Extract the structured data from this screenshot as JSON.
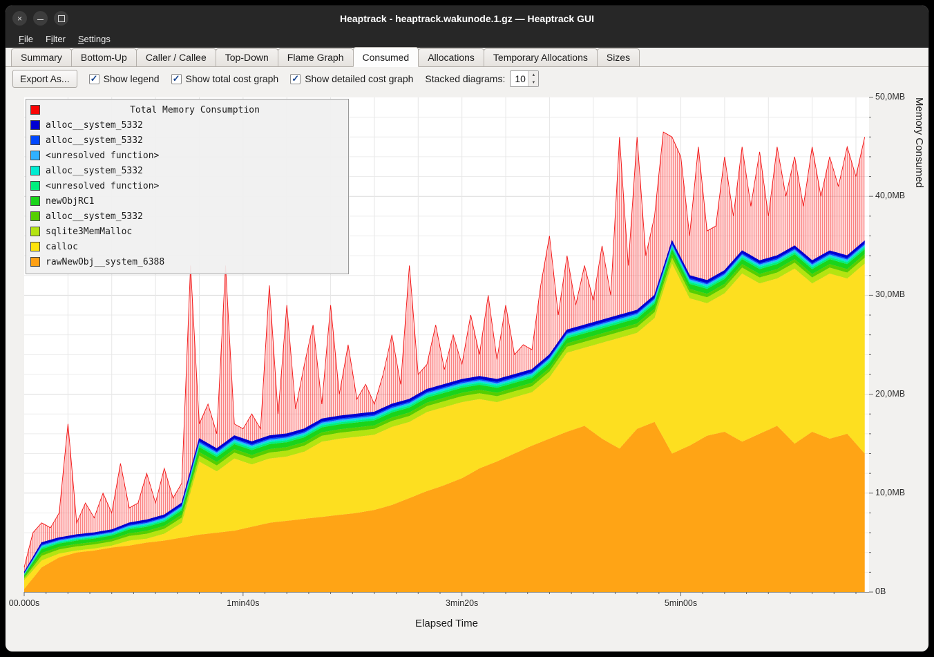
{
  "window": {
    "title": "Heaptrack - heaptrack.wakunode.1.gz — Heaptrack GUI",
    "controls": [
      {
        "name": "close",
        "glyph": "×"
      },
      {
        "name": "minimize",
        "glyph": "minus"
      },
      {
        "name": "maximize",
        "glyph": "square"
      }
    ]
  },
  "menubar": {
    "items": [
      {
        "label": "File",
        "underline": 0
      },
      {
        "label": "Filter",
        "underline": 1
      },
      {
        "label": "Settings",
        "underline": 0
      }
    ]
  },
  "tabs": {
    "items": [
      {
        "label": "Summary",
        "active": false
      },
      {
        "label": "Bottom-Up",
        "active": false
      },
      {
        "label": "Caller / Callee",
        "active": false
      },
      {
        "label": "Top-Down",
        "active": false
      },
      {
        "label": "Flame Graph",
        "active": false
      },
      {
        "label": "Consumed",
        "active": true
      },
      {
        "label": "Allocations",
        "active": false
      },
      {
        "label": "Temporary Allocations",
        "active": false
      },
      {
        "label": "Sizes",
        "active": false
      }
    ]
  },
  "toolbar": {
    "export_button": "Export As...",
    "checkboxes": [
      {
        "label": "Show legend",
        "checked": true
      },
      {
        "label": "Show total cost graph",
        "checked": true
      },
      {
        "label": "Show detailed cost graph",
        "checked": true
      }
    ],
    "stacked_label": "Stacked diagrams:",
    "stacked_value": "10"
  },
  "legend": {
    "title": "Total Memory Consumption",
    "title_color": "#fa0505",
    "entries": [
      {
        "label": "alloc__system_5332",
        "color": "#0000d2"
      },
      {
        "label": "alloc__system_5332",
        "color": "#0048ff"
      },
      {
        "label": "<unresolved function>",
        "color": "#2fb1ff"
      },
      {
        "label": "alloc__system_5332",
        "color": "#00ecd2"
      },
      {
        "label": "<unresolved function>",
        "color": "#00f07e"
      },
      {
        "label": "newObjRC1",
        "color": "#1ad41a"
      },
      {
        "label": "alloc__system_5332",
        "color": "#55cf00"
      },
      {
        "label": "sqlite3MemMalloc",
        "color": "#b4e411"
      },
      {
        "label": "calloc",
        "color": "#fde30b"
      },
      {
        "label": "rawNewObj__system_6388",
        "color": "#ffa013"
      }
    ]
  },
  "axes": {
    "x_label": "Elapsed Time",
    "y_label": "Memory Consumed",
    "x_ticks": [
      {
        "t": 0,
        "label": "00.000s"
      },
      {
        "t": 100,
        "label": "1min40s"
      },
      {
        "t": 200,
        "label": "3min20s"
      },
      {
        "t": 300,
        "label": "5min00s"
      }
    ],
    "y_ticks": [
      {
        "v": 0,
        "label": "0B"
      },
      {
        "v": 10,
        "label": "10,0MB"
      },
      {
        "v": 20,
        "label": "20,0MB"
      },
      {
        "v": 30,
        "label": "30,0MB"
      },
      {
        "v": 40,
        "label": "40,0MB"
      },
      {
        "v": 50,
        "label": "50,0MB"
      }
    ]
  },
  "chart_data": {
    "type": "area",
    "title": "Total Memory Consumption",
    "xlabel": "Elapsed Time",
    "ylabel": "Memory Consumed",
    "x_unit": "s",
    "y_unit": "MB",
    "x_range": [
      0,
      386
    ],
    "y_range": [
      0,
      50
    ],
    "grid": true,
    "legend_position": "top-left",
    "total_series": {
      "name": "Total Memory Consumption",
      "color": "#f21616",
      "step_s": 4,
      "values_mb": [
        2.5,
        6,
        7,
        6.5,
        8,
        17,
        7,
        9,
        7.5,
        10,
        8,
        13,
        8.5,
        9,
        12,
        9,
        12.5,
        9.5,
        11,
        33,
        17,
        19,
        16,
        33,
        17,
        16.5,
        18,
        16.5,
        31,
        18,
        29,
        18.5,
        23,
        27,
        19,
        29,
        20,
        25,
        19.5,
        21,
        19,
        22,
        26,
        21,
        33,
        22,
        23,
        27,
        22.5,
        26,
        23,
        28,
        24,
        30,
        23.5,
        29,
        24,
        25,
        24.5,
        31,
        36,
        28,
        34,
        29,
        33,
        29.5,
        35,
        30,
        46,
        33,
        46,
        34,
        38,
        46.5,
        46,
        44,
        36,
        45,
        36.5,
        37,
        44,
        38,
        45,
        39,
        44.5,
        38,
        45,
        40,
        44,
        39,
        45,
        40,
        44,
        41,
        45,
        42,
        46
      ]
    },
    "stack_top": {
      "name": "top of detailed stack (alloc__system_5332)",
      "color": "#0000d2",
      "step_s": 8,
      "values_mb": [
        2.0,
        5.0,
        5.5,
        5.8,
        6.0,
        6.3,
        7.0,
        7.3,
        7.8,
        9.0,
        15.5,
        14.5,
        15.8,
        15.2,
        15.8,
        16.0,
        16.5,
        17.5,
        17.8,
        18.0,
        18.2,
        19.0,
        19.5,
        20.5,
        21.0,
        21.5,
        21.8,
        21.5,
        22.0,
        22.5,
        24.0,
        26.5,
        27.0,
        27.5,
        28.0,
        28.5,
        30.0,
        35.5,
        32.0,
        31.5,
        32.5,
        34.5,
        33.5,
        34.0,
        35.0,
        33.5,
        34.5,
        34.0,
        35.5
      ]
    },
    "base_layers": [
      {
        "name": "rawNewObj__system_6388",
        "color": "#ffa415",
        "step_s": 8,
        "top_mb": [
          0.3,
          2.5,
          3.5,
          4.0,
          4.2,
          4.5,
          4.7,
          5.0,
          5.2,
          5.5,
          5.8,
          6.0,
          6.2,
          6.6,
          7.0,
          7.2,
          7.4,
          7.6,
          7.8,
          8.0,
          8.3,
          8.8,
          9.5,
          10.2,
          10.8,
          11.5,
          12.5,
          13.2,
          14.0,
          14.8,
          15.5,
          16.2,
          16.8,
          15.5,
          14.5,
          16.5,
          17.2,
          14.0,
          14.8,
          15.8,
          16.2,
          15.2,
          16.0,
          16.8,
          15.0,
          16.2,
          15.5,
          16.0,
          14.0
        ]
      },
      {
        "name": "calloc",
        "color": "#fddf20",
        "step_s": 8,
        "top_mb": [
          1.2,
          3.2,
          3.9,
          4.2,
          4.4,
          4.7,
          5.2,
          5.4,
          5.9,
          7.0,
          13.2,
          12.2,
          13.5,
          12.9,
          13.5,
          13.7,
          14.2,
          15.2,
          15.5,
          15.7,
          15.9,
          16.7,
          17.2,
          18.2,
          18.7,
          19.2,
          19.5,
          19.2,
          19.7,
          20.2,
          21.7,
          24.2,
          24.7,
          25.2,
          25.7,
          26.2,
          27.7,
          33.2,
          29.7,
          29.2,
          30.2,
          32.2,
          31.2,
          31.7,
          32.7,
          31.2,
          32.2,
          31.7,
          33.2
        ]
      }
    ],
    "thin_layers_bottom_to_top": [
      {
        "name": "sqlite3MemMalloc",
        "color": "#b4e411",
        "thickness_mb": 0.6
      },
      {
        "name": "alloc__system_5332",
        "color": "#55cf00",
        "thickness_mb": 0.35
      },
      {
        "name": "newObjRC1",
        "color": "#1ad41a",
        "thickness_mb": 0.5
      },
      {
        "name": "<unresolved function>",
        "color": "#00f07e",
        "thickness_mb": 0.2
      },
      {
        "name": "alloc__system_5332",
        "color": "#00ecd2",
        "thickness_mb": 0.15
      },
      {
        "name": "<unresolved function>",
        "color": "#2fb1ff",
        "thickness_mb": 0.12
      },
      {
        "name": "alloc__system_5332",
        "color": "#0048ff",
        "thickness_mb": 0.12
      },
      {
        "name": "alloc__system_5332",
        "color": "#0000d2",
        "thickness_mb": 0.26
      }
    ]
  }
}
